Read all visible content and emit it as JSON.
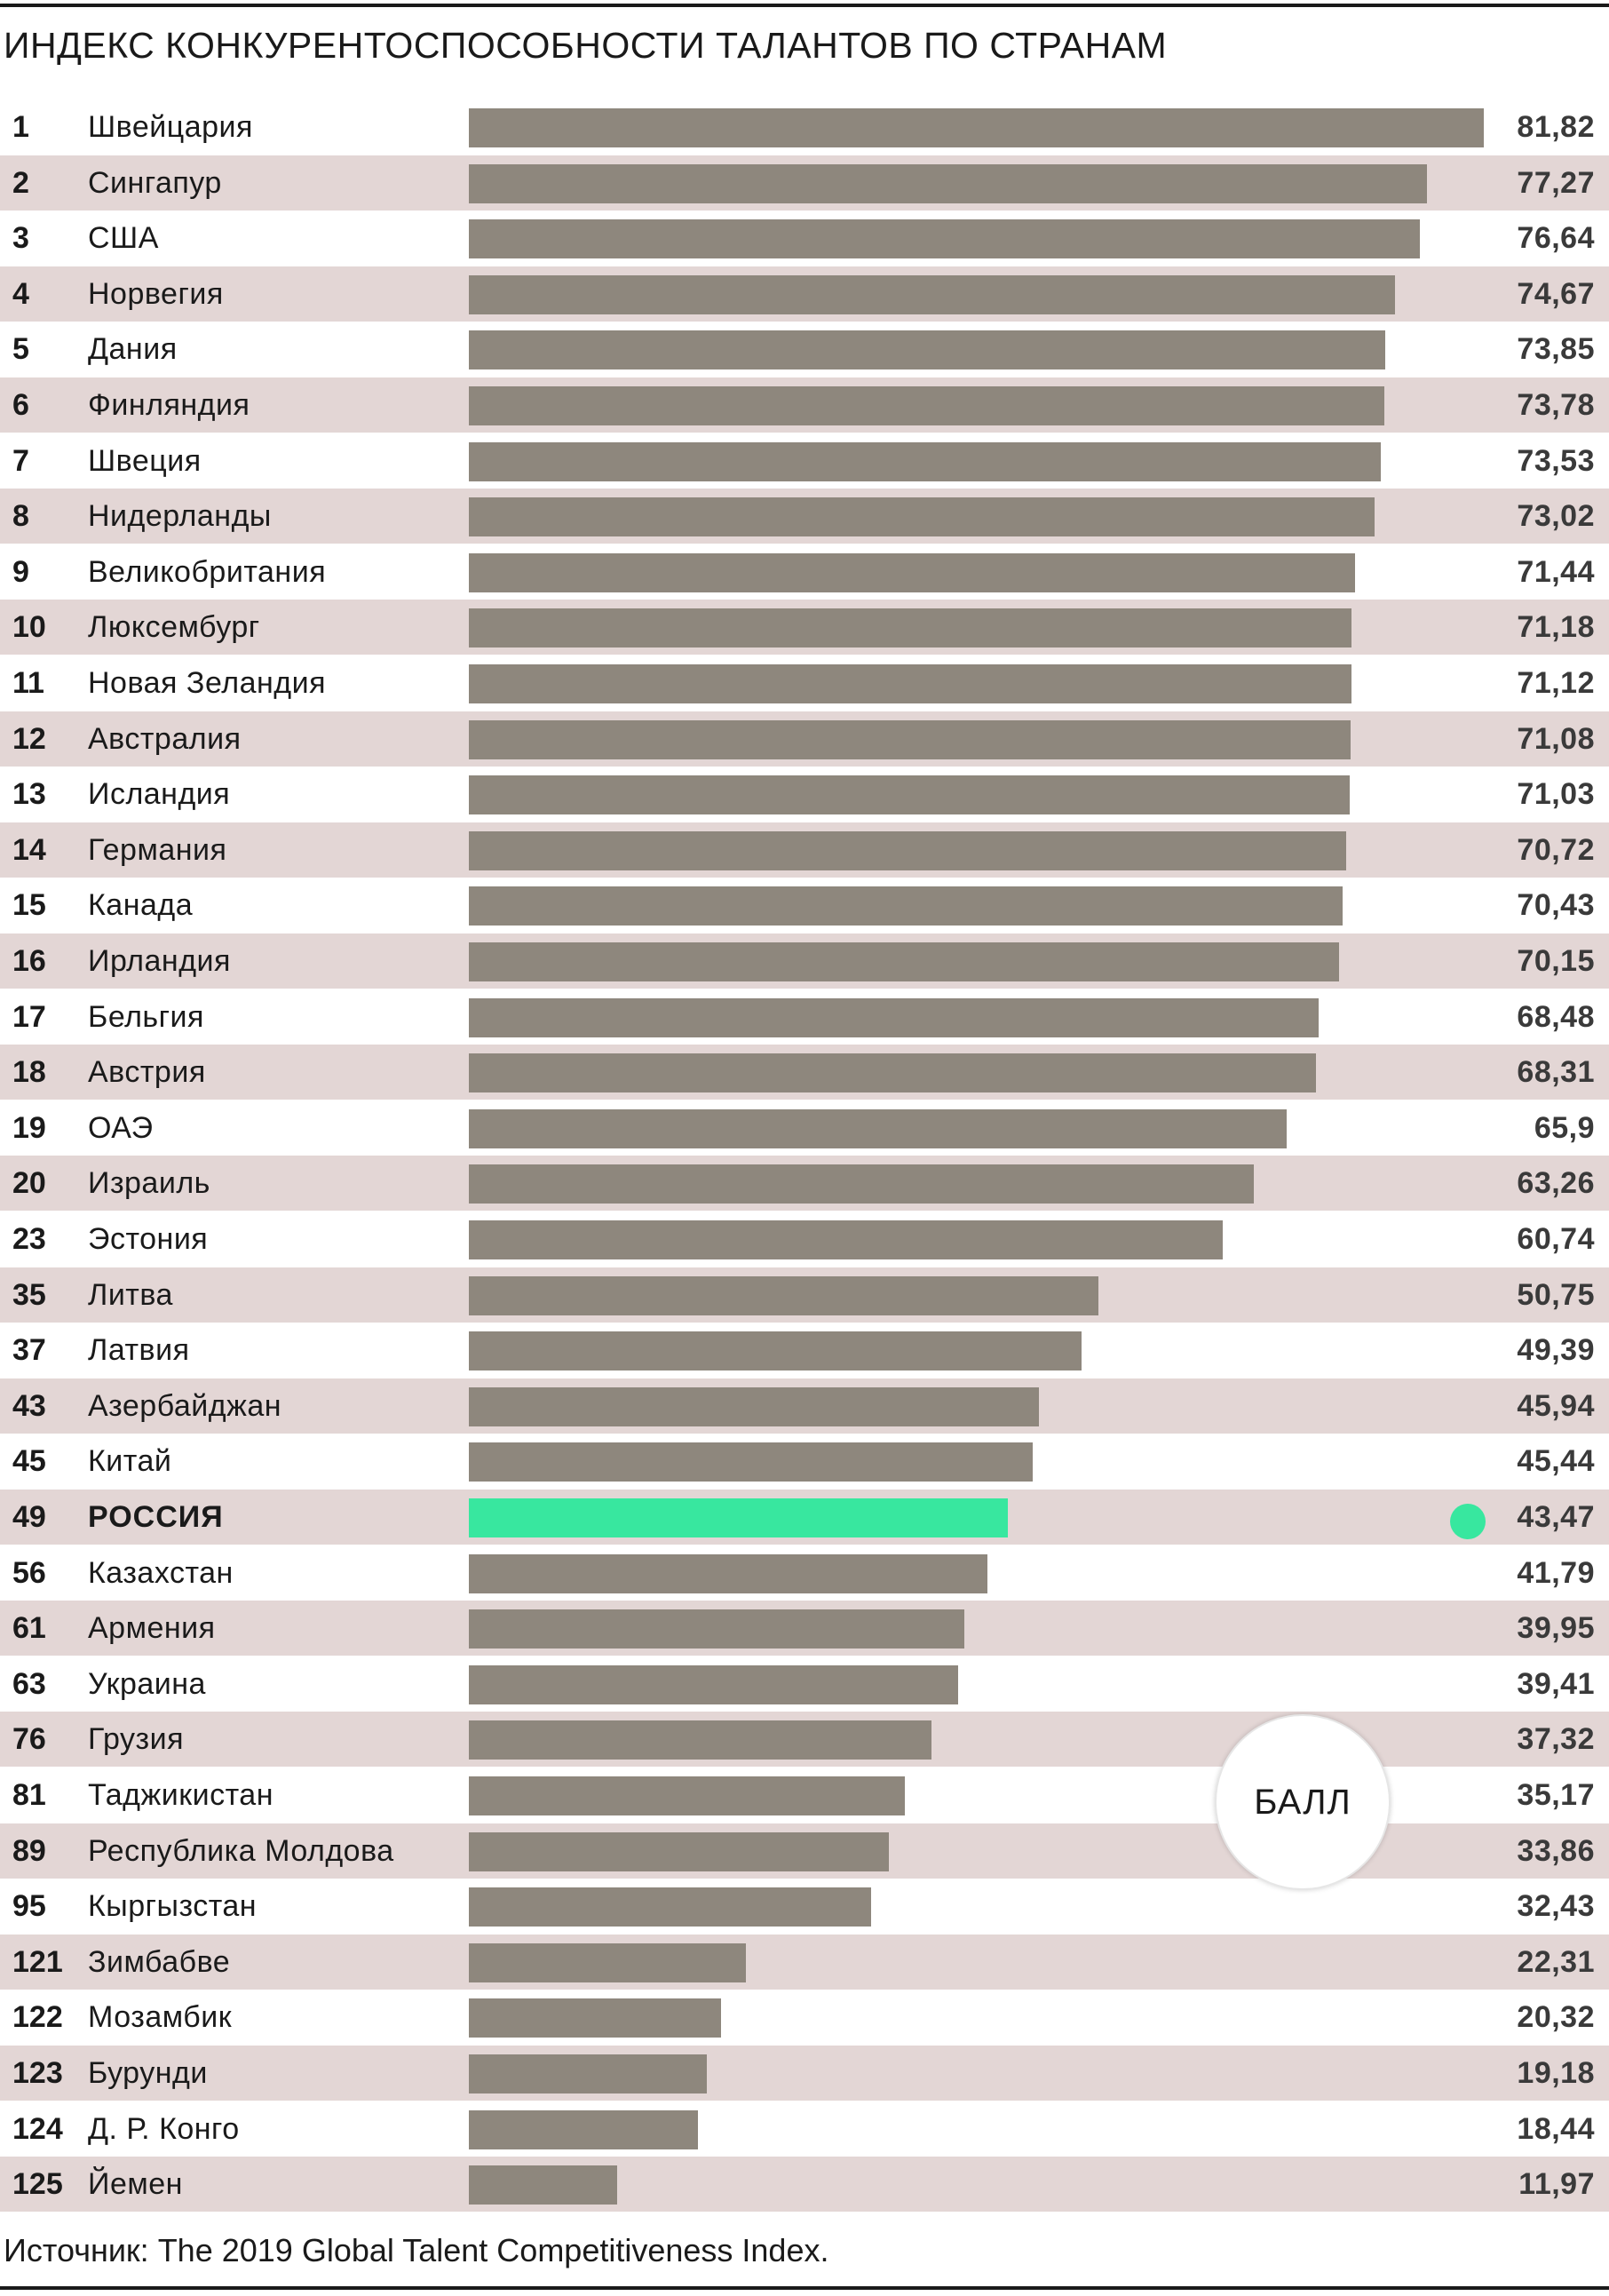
{
  "title": "ИНДЕКС КОНКУРЕНТОСПОСОБНОСТИ ТАЛАНТОВ ПО СТРАНАМ",
  "unit_label": "БАЛЛ",
  "source": "Источник: The 2019 Global Talent Competitiveness Index.",
  "colors": {
    "bar": "#8e877d",
    "highlight": "#38e79f",
    "row_shade": "#e3d6d5"
  },
  "chart_data": {
    "type": "bar",
    "orientation": "horizontal",
    "title": "ИНДЕКС КОНКУРЕНТОСПОСОБНОСТИ ТАЛАНТОВ ПО СТРАНАМ",
    "xlabel": "БАЛЛ",
    "xlim": [
      0,
      81.82
    ],
    "highlight": "РОССИЯ",
    "rows": [
      {
        "rank": "1",
        "country": "Швейцария",
        "value": 81.82,
        "label": "81,82"
      },
      {
        "rank": "2",
        "country": "Сингапур",
        "value": 77.27,
        "label": "77,27"
      },
      {
        "rank": "3",
        "country": "США",
        "value": 76.64,
        "label": "76,64"
      },
      {
        "rank": "4",
        "country": "Норвегия",
        "value": 74.67,
        "label": "74,67"
      },
      {
        "rank": "5",
        "country": "Дания",
        "value": 73.85,
        "label": "73,85"
      },
      {
        "rank": "6",
        "country": "Финляндия",
        "value": 73.78,
        "label": "73,78"
      },
      {
        "rank": "7",
        "country": "Швеция",
        "value": 73.53,
        "label": "73,53"
      },
      {
        "rank": "8",
        "country": "Нидерланды",
        "value": 73.02,
        "label": "73,02"
      },
      {
        "rank": "9",
        "country": "Великобритания",
        "value": 71.44,
        "label": "71,44"
      },
      {
        "rank": "10",
        "country": "Люксембург",
        "value": 71.18,
        "label": "71,18"
      },
      {
        "rank": "11",
        "country": "Новая Зеландия",
        "value": 71.12,
        "label": "71,12"
      },
      {
        "rank": "12",
        "country": "Австралия",
        "value": 71.08,
        "label": "71,08"
      },
      {
        "rank": "13",
        "country": "Исландия",
        "value": 71.03,
        "label": "71,03"
      },
      {
        "rank": "14",
        "country": "Германия",
        "value": 70.72,
        "label": "70,72"
      },
      {
        "rank": "15",
        "country": "Канада",
        "value": 70.43,
        "label": "70,43"
      },
      {
        "rank": "16",
        "country": "Ирландия",
        "value": 70.15,
        "label": "70,15"
      },
      {
        "rank": "17",
        "country": "Бельгия",
        "value": 68.48,
        "label": "68,48"
      },
      {
        "rank": "18",
        "country": "Австрия",
        "value": 68.31,
        "label": "68,31"
      },
      {
        "rank": "19",
        "country": "ОАЭ",
        "value": 65.9,
        "label": "65,9"
      },
      {
        "rank": "20",
        "country": "Израиль",
        "value": 63.26,
        "label": "63,26"
      },
      {
        "rank": "23",
        "country": "Эстония",
        "value": 60.74,
        "label": "60,74"
      },
      {
        "rank": "35",
        "country": "Литва",
        "value": 50.75,
        "label": "50,75"
      },
      {
        "rank": "37",
        "country": "Латвия",
        "value": 49.39,
        "label": "49,39"
      },
      {
        "rank": "43",
        "country": "Азербайджан",
        "value": 45.94,
        "label": "45,94"
      },
      {
        "rank": "45",
        "country": "Китай",
        "value": 45.44,
        "label": "45,44"
      },
      {
        "rank": "49",
        "country": "РОССИЯ",
        "value": 43.47,
        "label": "43,47"
      },
      {
        "rank": "56",
        "country": "Казахстан",
        "value": 41.79,
        "label": "41,79"
      },
      {
        "rank": "61",
        "country": "Армения",
        "value": 39.95,
        "label": "39,95"
      },
      {
        "rank": "63",
        "country": "Украина",
        "value": 39.41,
        "label": "39,41"
      },
      {
        "rank": "76",
        "country": "Грузия",
        "value": 37.32,
        "label": "37,32"
      },
      {
        "rank": "81",
        "country": "Таджикистан",
        "value": 35.17,
        "label": "35,17"
      },
      {
        "rank": "89",
        "country": "Республика Молдова",
        "value": 33.86,
        "label": "33,86"
      },
      {
        "rank": "95",
        "country": "Кыргызстан",
        "value": 32.43,
        "label": "32,43"
      },
      {
        "rank": "121",
        "country": "Зимбабве",
        "value": 22.31,
        "label": "22,31"
      },
      {
        "rank": "122",
        "country": "Мозамбик",
        "value": 20.32,
        "label": "20,32"
      },
      {
        "rank": "123",
        "country": "Бурунди",
        "value": 19.18,
        "label": "19,18"
      },
      {
        "rank": "124",
        "country": "Д. Р. Конго",
        "value": 18.44,
        "label": "18,44"
      },
      {
        "rank": "125",
        "country": "Йемен",
        "value": 11.97,
        "label": "11,97"
      }
    ]
  }
}
